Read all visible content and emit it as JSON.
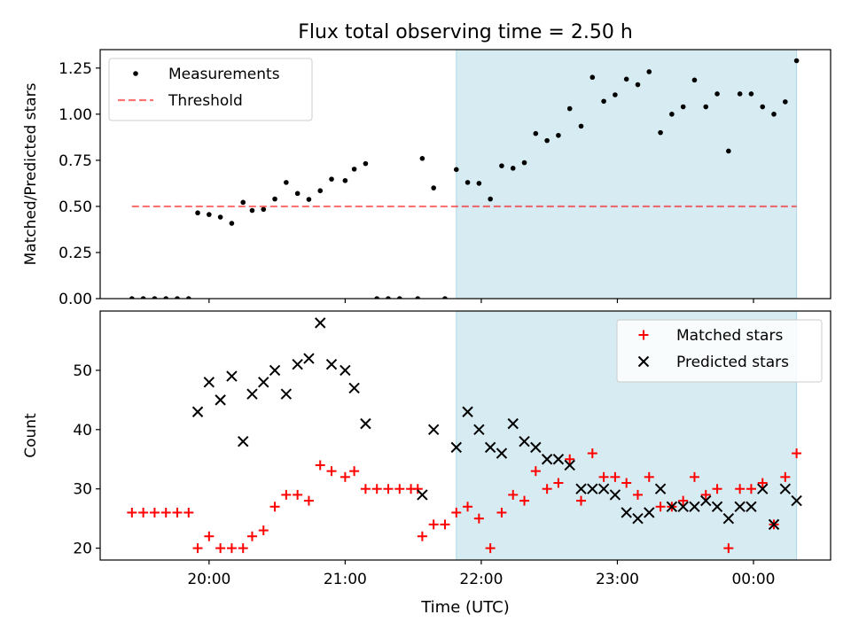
{
  "title": "Flux total observing time = 2.50 h",
  "xlabel": "Time (UTC)",
  "x_ticks": [
    "20:00",
    "21:00",
    "22:00",
    "23:00",
    "00:00"
  ],
  "colors": {
    "highlight": "#add8e6",
    "threshold": "#ff0000",
    "matched": "#ff0000",
    "predicted": "#000000",
    "measurements": "#000000"
  },
  "chart_data": [
    {
      "type": "scatter",
      "ylabel": "Matched/Predicted stars",
      "xlim": [
        "19:12",
        "00:34"
      ],
      "ylim": [
        0,
        1.35
      ],
      "y_ticks": [
        "0.00",
        "0.25",
        "0.50",
        "0.75",
        "1.00",
        "1.25"
      ],
      "highlight_span": {
        "from": "21:49",
        "to": "00:19"
      },
      "legend_position": "upper-left",
      "series": [
        {
          "name": "Measurements",
          "marker": "dot",
          "points": [
            [
              "19:26",
              0
            ],
            [
              "19:31",
              0
            ],
            [
              "19:36",
              0
            ],
            [
              "19:41",
              0
            ],
            [
              "19:46",
              0
            ],
            [
              "19:51",
              0
            ],
            [
              "19:55",
              0.465
            ],
            [
              "20:00",
              0.456
            ],
            [
              "20:05",
              0.442
            ],
            [
              "20:10",
              0.408
            ],
            [
              "20:15",
              0.522
            ],
            [
              "20:19",
              0.478
            ],
            [
              "20:24",
              0.484
            ],
            [
              "20:29",
              0.54
            ],
            [
              "20:34",
              0.63
            ],
            [
              "20:39",
              0.57
            ],
            [
              "20:44",
              0.538
            ],
            [
              "20:49",
              0.585
            ],
            [
              "20:54",
              0.648
            ],
            [
              "21:00",
              0.64
            ],
            [
              "21:04",
              0.702
            ],
            [
              "21:09",
              0.732
            ],
            [
              "21:14",
              0
            ],
            [
              "21:19",
              0
            ],
            [
              "21:24",
              0
            ],
            [
              "21:32",
              0
            ],
            [
              "21:34",
              0.76
            ],
            [
              "21:39",
              0.6
            ],
            [
              "21:44",
              0
            ],
            [
              "21:49",
              0.7
            ],
            [
              "21:54",
              0.63
            ],
            [
              "21:59",
              0.625
            ],
            [
              "22:04",
              0.54
            ],
            [
              "22:09",
              0.72
            ],
            [
              "22:14",
              0.707
            ],
            [
              "22:19",
              0.737
            ],
            [
              "22:24",
              0.895
            ],
            [
              "22:29",
              0.857
            ],
            [
              "22:34",
              0.885
            ],
            [
              "22:39",
              1.03
            ],
            [
              "22:44",
              0.935
            ],
            [
              "22:49",
              1.2
            ],
            [
              "22:54",
              1.07
            ],
            [
              "22:59",
              1.105
            ],
            [
              "23:04",
              1.19
            ],
            [
              "23:09",
              1.16
            ],
            [
              "23:14",
              1.23
            ],
            [
              "23:19",
              0.9
            ],
            [
              "23:24",
              1.0
            ],
            [
              "23:29",
              1.04
            ],
            [
              "23:34",
              1.185
            ],
            [
              "23:39",
              1.04
            ],
            [
              "23:44",
              1.11
            ],
            [
              "23:49",
              0.8
            ],
            [
              "23:54",
              1.11
            ],
            [
              "23:59",
              1.11
            ],
            [
              "00:04",
              1.04
            ],
            [
              "00:09",
              1.0
            ],
            [
              "00:14",
              1.067
            ],
            [
              "00:19",
              1.29
            ]
          ]
        },
        {
          "name": "Threshold",
          "marker": "dashed-line",
          "points": [
            [
              "19:26",
              0.5
            ],
            [
              "00:19",
              0.5
            ]
          ]
        }
      ]
    },
    {
      "type": "scatter",
      "ylabel": "Count",
      "xlim": [
        "19:12",
        "00:34"
      ],
      "ylim": [
        18,
        60
      ],
      "y_ticks": [
        "20",
        "30",
        "40",
        "50"
      ],
      "highlight_span": {
        "from": "21:49",
        "to": "00:19"
      },
      "legend_position": "upper-right",
      "series": [
        {
          "name": "Matched stars",
          "marker": "plus",
          "points": [
            [
              "19:26",
              26
            ],
            [
              "19:31",
              26
            ],
            [
              "19:36",
              26
            ],
            [
              "19:41",
              26
            ],
            [
              "19:46",
              26
            ],
            [
              "19:51",
              26
            ],
            [
              "19:55",
              20
            ],
            [
              "20:00",
              22
            ],
            [
              "20:05",
              20
            ],
            [
              "20:10",
              20
            ],
            [
              "20:15",
              20
            ],
            [
              "20:19",
              22
            ],
            [
              "20:24",
              23
            ],
            [
              "20:29",
              27
            ],
            [
              "20:34",
              29
            ],
            [
              "20:39",
              29
            ],
            [
              "20:44",
              28
            ],
            [
              "20:49",
              34
            ],
            [
              "20:54",
              33
            ],
            [
              "21:00",
              32
            ],
            [
              "21:04",
              33
            ],
            [
              "21:09",
              30
            ],
            [
              "21:14",
              30
            ],
            [
              "21:19",
              30
            ],
            [
              "21:24",
              30
            ],
            [
              "21:29",
              30
            ],
            [
              "21:32",
              30
            ],
            [
              "21:34",
              22
            ],
            [
              "21:39",
              24
            ],
            [
              "21:44",
              24
            ],
            [
              "21:49",
              26
            ],
            [
              "21:54",
              27
            ],
            [
              "21:59",
              25
            ],
            [
              "22:04",
              20
            ],
            [
              "22:09",
              26
            ],
            [
              "22:14",
              29
            ],
            [
              "22:19",
              28
            ],
            [
              "22:24",
              33
            ],
            [
              "22:29",
              30
            ],
            [
              "22:34",
              31
            ],
            [
              "22:39",
              35
            ],
            [
              "22:44",
              28
            ],
            [
              "22:49",
              36
            ],
            [
              "22:54",
              32
            ],
            [
              "22:59",
              32
            ],
            [
              "23:04",
              31
            ],
            [
              "23:09",
              29
            ],
            [
              "23:14",
              32
            ],
            [
              "23:19",
              27
            ],
            [
              "23:24",
              27
            ],
            [
              "23:29",
              28
            ],
            [
              "23:34",
              32
            ],
            [
              "23:39",
              29
            ],
            [
              "23:44",
              30
            ],
            [
              "23:49",
              20
            ],
            [
              "23:54",
              30
            ],
            [
              "23:59",
              30
            ],
            [
              "00:04",
              31
            ],
            [
              "00:09",
              24
            ],
            [
              "00:14",
              32
            ],
            [
              "00:19",
              36
            ]
          ]
        },
        {
          "name": "Predicted stars",
          "marker": "x",
          "points": [
            [
              "19:55",
              43
            ],
            [
              "20:00",
              48
            ],
            [
              "20:05",
              45
            ],
            [
              "20:10",
              49
            ],
            [
              "20:15",
              38
            ],
            [
              "20:19",
              46
            ],
            [
              "20:24",
              48
            ],
            [
              "20:29",
              50
            ],
            [
              "20:34",
              46
            ],
            [
              "20:39",
              51
            ],
            [
              "20:44",
              52
            ],
            [
              "20:49",
              58
            ],
            [
              "20:54",
              51
            ],
            [
              "21:00",
              50
            ],
            [
              "21:04",
              47
            ],
            [
              "21:09",
              41
            ],
            [
              "21:34",
              29
            ],
            [
              "21:39",
              40
            ],
            [
              "21:49",
              37
            ],
            [
              "21:54",
              43
            ],
            [
              "21:59",
              40
            ],
            [
              "22:04",
              37
            ],
            [
              "22:09",
              36
            ],
            [
              "22:14",
              41
            ],
            [
              "22:19",
              38
            ],
            [
              "22:24",
              37
            ],
            [
              "22:29",
              35
            ],
            [
              "22:34",
              35
            ],
            [
              "22:39",
              34
            ],
            [
              "22:44",
              30
            ],
            [
              "22:49",
              30
            ],
            [
              "22:54",
              30
            ],
            [
              "22:59",
              29
            ],
            [
              "23:04",
              26
            ],
            [
              "23:09",
              25
            ],
            [
              "23:14",
              26
            ],
            [
              "23:19",
              30
            ],
            [
              "23:24",
              27
            ],
            [
              "23:29",
              27
            ],
            [
              "23:34",
              27
            ],
            [
              "23:39",
              28
            ],
            [
              "23:44",
              27
            ],
            [
              "23:49",
              25
            ],
            [
              "23:54",
              27
            ],
            [
              "23:59",
              27
            ],
            [
              "00:04",
              30
            ],
            [
              "00:09",
              24
            ],
            [
              "00:14",
              30
            ],
            [
              "00:19",
              28
            ]
          ]
        }
      ]
    }
  ]
}
